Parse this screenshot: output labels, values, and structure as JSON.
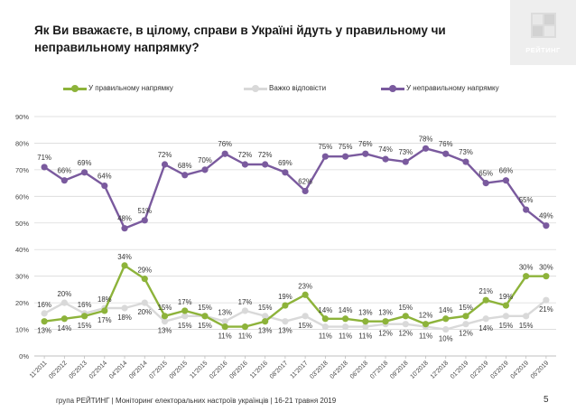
{
  "header": {
    "title": "Як Ви вважаєте, в цілому, справи в Україні йдуть у правильному чи неправильному напрямку?",
    "logo_text": "РЕЙТИНГ"
  },
  "footer": {
    "text": "група РЕЙТИНГ | Моніторинг електоральних настроїв українців | 16-21 травня 2019",
    "page_number": "5"
  },
  "colors": {
    "right_direction": "#8db33a",
    "hard_to_say": "#d9d9d9",
    "wrong_direction": "#7a5a9e"
  },
  "chart_data": {
    "type": "line",
    "title": "Як Ви вважаєте, в цілому, справи в Україні йдуть у правильному чи неправильному напрямку?",
    "xlabel": "",
    "ylabel": "",
    "ylim": [
      0,
      90
    ],
    "yticks": [
      "0%",
      "10%",
      "20%",
      "30%",
      "40%",
      "50%",
      "60%",
      "70%",
      "80%",
      "90%"
    ],
    "grid": true,
    "legend_position": "top",
    "x": [
      "11'2011",
      "05'2012",
      "05'2013",
      "02'2014",
      "04'2014",
      "09'2014",
      "07'2015",
      "09'2015",
      "11'2015",
      "02'2016",
      "09'2016",
      "11'2016",
      "08'2017",
      "11'2017",
      "03'2018",
      "04'2018",
      "06'2018",
      "07'2018",
      "09'2018",
      "10'2018",
      "12'2018",
      "01'2019",
      "02'2019",
      "03'2019",
      "04'2019",
      "05'2019"
    ],
    "series": [
      {
        "name": "У правильному напрямку",
        "color": "#8db33a",
        "values": [
          13,
          14,
          15,
          17,
          34,
          29,
          15,
          17,
          15,
          11,
          11,
          13,
          19,
          23,
          14,
          14,
          13,
          13,
          15,
          12,
          14,
          15,
          21,
          19,
          30,
          30
        ]
      },
      {
        "name": "Важко відповісти",
        "color": "#d9d9d9",
        "values": [
          16,
          20,
          16,
          18,
          18,
          20,
          13,
          15,
          15,
          13,
          17,
          15,
          13,
          15,
          11,
          11,
          11,
          12,
          12,
          11,
          10,
          12,
          14,
          15,
          15,
          21
        ]
      },
      {
        "name": "У неправильному напрямку",
        "color": "#7a5a9e",
        "values": [
          71,
          66,
          69,
          64,
          48,
          51,
          72,
          68,
          70,
          76,
          72,
          72,
          69,
          62,
          75,
          75,
          76,
          74,
          73,
          78,
          76,
          73,
          65,
          66,
          55,
          49
        ]
      }
    ]
  }
}
